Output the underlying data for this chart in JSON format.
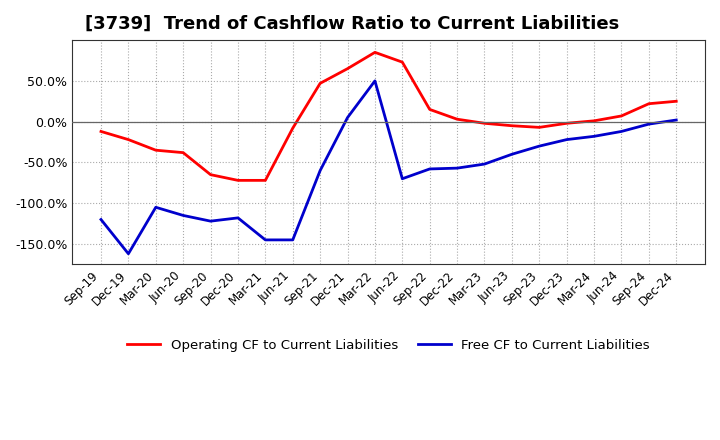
{
  "title": "[3739]  Trend of Cashflow Ratio to Current Liabilities",
  "x_labels": [
    "Sep-19",
    "Dec-19",
    "Mar-20",
    "Jun-20",
    "Sep-20",
    "Dec-20",
    "Mar-21",
    "Jun-21",
    "Sep-21",
    "Dec-21",
    "Mar-22",
    "Jun-22",
    "Sep-22",
    "Dec-22",
    "Mar-23",
    "Jun-23",
    "Sep-23",
    "Dec-23",
    "Mar-24",
    "Jun-24",
    "Sep-24",
    "Dec-24"
  ],
  "operating_cf": [
    -12,
    -22,
    -35,
    -38,
    -65,
    -72,
    -72,
    -8,
    47,
    65,
    85,
    73,
    15,
    3,
    -2,
    -5,
    -7,
    -2,
    1,
    7,
    22,
    25
  ],
  "free_cf": [
    -120,
    -162,
    -105,
    -115,
    -122,
    -118,
    -145,
    -145,
    -60,
    5,
    50,
    -70,
    -58,
    -57,
    -52,
    -40,
    -30,
    -22,
    -18,
    -12,
    -3,
    2
  ],
  "operating_color": "#ff0000",
  "free_color": "#0000cc",
  "ylim": [
    -175,
    100
  ],
  "yticks": [
    -150,
    -100,
    -50,
    0,
    50
  ],
  "ytick_labels": [
    "-150.0%",
    "-100.0%",
    "-50.0%",
    "0.0%",
    "50.0%"
  ],
  "legend_op": "Operating CF to Current Liabilities",
  "legend_free": "Free CF to Current Liabilities",
  "bg_color": "#ffffff",
  "plot_bg": "#ffffff",
  "grid_color": "#aaaaaa",
  "line_width": 2.0,
  "title_fontsize": 13,
  "tick_fontsize": 9
}
